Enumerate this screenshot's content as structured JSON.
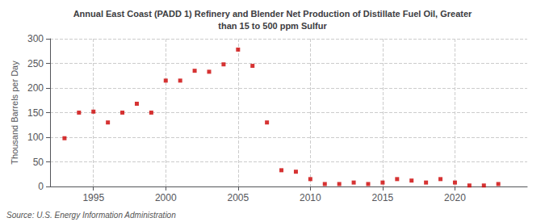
{
  "chart_data": {
    "type": "scatter",
    "title": "Annual East Coast (PADD 1) Refinery and Blender Net Production of Distillate Fuel Oil, Greater\nthan 15 to 500 ppm Sulfur",
    "ylabel": "Thousand Barrels per Day",
    "source": "Source: U.S. Energy Information Administration",
    "color": "#cc0000",
    "marker": "square",
    "x": [
      1993,
      1994,
      1995,
      1996,
      1997,
      1998,
      1999,
      2000,
      2001,
      2002,
      2003,
      2004,
      2005,
      2006,
      2007,
      2008,
      2009,
      2010,
      2011,
      2012,
      2013,
      2014,
      2015,
      2016,
      2017,
      2018,
      2019,
      2020,
      2021,
      2022,
      2023
    ],
    "values": [
      98,
      150,
      152,
      130,
      150,
      168,
      150,
      215,
      215,
      235,
      233,
      248,
      278,
      245,
      130,
      33,
      30,
      15,
      5,
      5,
      8,
      5,
      8,
      15,
      12,
      8,
      15,
      8,
      2,
      2,
      5
    ],
    "xlim": [
      1992,
      2025
    ],
    "ylim": [
      0,
      300
    ],
    "yticks": [
      0,
      50,
      100,
      150,
      200,
      250,
      300
    ],
    "xticks": [
      1995,
      2000,
      2005,
      2010,
      2015,
      2020
    ],
    "grid": true
  }
}
